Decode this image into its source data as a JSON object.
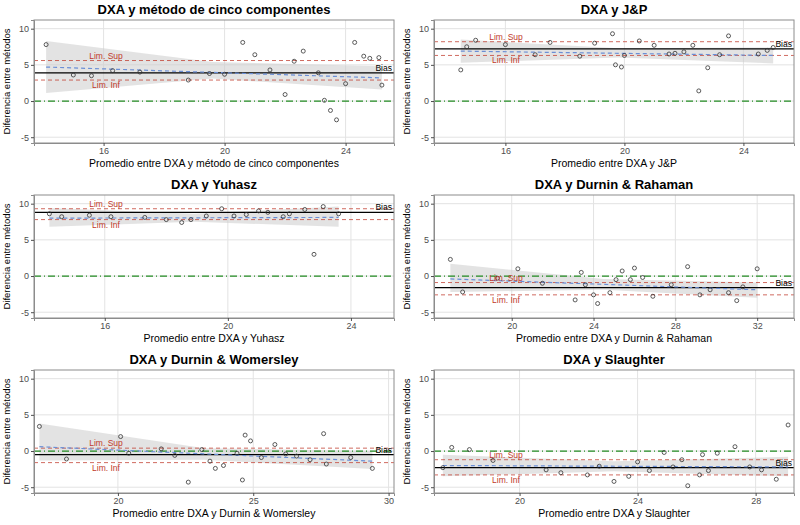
{
  "chart_data": [
    {
      "type": "scatter",
      "title": "DXA y método de cinco componentes",
      "x_label": "Promedio entre DXA y método de cinco componentes",
      "y_label": "Diferencia entre métodos",
      "xlim": [
        13.7,
        25.6
      ],
      "ylim": [
        -5.8,
        11.2
      ],
      "xticks": [
        16,
        20,
        24
      ],
      "yticks": [
        -5,
        0,
        5,
        10
      ],
      "grid": true,
      "marker": "open-circle",
      "color": "#333333",
      "x": [
        14.1,
        15.0,
        15.6,
        16.3,
        17.2,
        18.8,
        19.5,
        20.0,
        20.6,
        21.0,
        21.5,
        22.0,
        22.3,
        22.6,
        23.1,
        23.3,
        23.5,
        23.7,
        24.0,
        24.3,
        24.6,
        24.8,
        25.1,
        25.2
      ],
      "y": [
        7.8,
        3.6,
        3.5,
        4.2,
        4.0,
        2.9,
        3.8,
        3.7,
        8.1,
        6.4,
        4.3,
        0.9,
        5.5,
        6.9,
        3.9,
        0.1,
        -1.3,
        -2.6,
        2.4,
        8.1,
        6.2,
        5.9,
        6.0,
        2.2
      ],
      "reference_lines": [
        {
          "name": "Lim. Sup",
          "value": 5.6,
          "color": "#c0392b",
          "line_style": "dashed"
        },
        {
          "name": "Lim. Inf",
          "value": 2.9,
          "color": "#c0392b",
          "line_style": "dashed"
        },
        {
          "name": "Bias",
          "value": 3.9,
          "color": "#000000",
          "line_style": "solid"
        }
      ],
      "zero_line": {
        "value": 0,
        "color": "#228b22",
        "line_style": "dashdot"
      },
      "trend": {
        "x": [
          14.1,
          25.2
        ],
        "y": [
          4.7,
          3.2
        ],
        "color": "#6b8fd6",
        "line_style": "dashed"
      },
      "band": {
        "x": [
          14.1,
          19.6,
          25.2
        ],
        "lower": [
          1.1,
          3.1,
          1.6
        ],
        "upper": [
          8.3,
          5.4,
          4.8
        ],
        "color": "#cccccc"
      }
    },
    {
      "type": "scatter",
      "title": "DXA y J&P",
      "x_label": "Promedio entre DXA y J&P",
      "y_label": "Diferencia entre métodos",
      "xlim": [
        13.6,
        25.7
      ],
      "ylim": [
        -5.8,
        11.2
      ],
      "xticks": [
        16,
        20,
        24
      ],
      "yticks": [
        -5,
        0,
        5,
        10
      ],
      "grid": true,
      "marker": "open-circle",
      "color": "#333333",
      "x": [
        14.5,
        14.7,
        15.0,
        16.0,
        17.0,
        17.5,
        18.5,
        19.0,
        19.6,
        19.7,
        19.9,
        20.0,
        20.5,
        21.0,
        21.5,
        21.7,
        22.0,
        22.3,
        22.5,
        22.8,
        23.2,
        23.5,
        24.5,
        24.8,
        25.0
      ],
      "y": [
        4.3,
        7.5,
        8.4,
        7.8,
        6.4,
        8.1,
        6.2,
        8.0,
        9.3,
        5.0,
        4.7,
        6.3,
        8.3,
        7.7,
        6.5,
        6.6,
        6.8,
        7.7,
        1.4,
        4.6,
        6.4,
        9.0,
        6.5,
        7.0,
        7.4
      ],
      "reference_lines": [
        {
          "name": "Lim. Sup",
          "value": 8.2,
          "color": "#c0392b",
          "line_style": "dashed"
        },
        {
          "name": "Lim. Inf",
          "value": 6.3,
          "color": "#c0392b",
          "line_style": "dashed"
        },
        {
          "name": "Bias",
          "value": 7.2,
          "color": "#000000",
          "line_style": "solid"
        }
      ],
      "zero_line": {
        "value": 0,
        "color": "#228b22",
        "line_style": "dashdot"
      },
      "trend": {
        "x": [
          14.5,
          25.0
        ],
        "y": [
          6.9,
          6.3
        ],
        "color": "#6b8fd6",
        "line_style": "dashed"
      },
      "band": {
        "x": [
          14.5,
          19.8,
          25.0
        ],
        "lower": [
          5.3,
          6.0,
          5.2
        ],
        "upper": [
          8.5,
          7.3,
          7.4
        ],
        "color": "#cccccc"
      }
    },
    {
      "type": "scatter",
      "title": "DXA y Yuhasz",
      "x_label": "Promedio entre DXA y Yuhasz",
      "y_label": "Diferencia entre métodos",
      "xlim": [
        13.7,
        25.4
      ],
      "ylim": [
        -5.8,
        11.2
      ],
      "xticks": [
        16,
        20,
        24
      ],
      "yticks": [
        -5,
        0,
        5,
        10
      ],
      "grid": true,
      "marker": "open-circle",
      "color": "#333333",
      "x": [
        14.2,
        14.6,
        15.5,
        16.2,
        17.3,
        18.0,
        18.5,
        18.8,
        19.3,
        19.8,
        20.2,
        20.6,
        21.0,
        21.3,
        21.8,
        22.0,
        22.5,
        22.8,
        23.1,
        23.6
      ],
      "y": [
        8.6,
        8.2,
        8.4,
        8.2,
        8.1,
        7.8,
        7.4,
        7.8,
        8.3,
        9.3,
        8.3,
        8.5,
        9.0,
        8.8,
        8.2,
        8.6,
        9.2,
        3.0,
        9.6,
        8.6
      ],
      "reference_lines": [
        {
          "name": "Lim. Sup",
          "value": 9.3,
          "color": "#c0392b",
          "line_style": "dashed"
        },
        {
          "name": "Lim. Inf",
          "value": 7.8,
          "color": "#c0392b",
          "line_style": "dashed"
        },
        {
          "name": "Bias",
          "value": 8.8,
          "color": "#000000",
          "line_style": "solid"
        }
      ],
      "zero_line": {
        "value": 0,
        "color": "#228b22",
        "line_style": "dashdot"
      },
      "trend": {
        "x": [
          14.2,
          23.6
        ],
        "y": [
          8.0,
          8.1
        ],
        "color": "#6b8fd6",
        "line_style": "dashed"
      },
      "band": {
        "x": [
          14.2,
          18.9,
          23.6
        ],
        "lower": [
          6.8,
          7.5,
          6.8
        ],
        "upper": [
          9.4,
          8.6,
          9.6
        ],
        "color": "#cccccc"
      }
    },
    {
      "type": "scatter",
      "title": "DXA y Durnin & Rahaman",
      "x_label": "Promedio entre DXA y Durnin & Rahaman",
      "y_label": "Diferencia entre métodos",
      "xlim": [
        16.2,
        33.8
      ],
      "ylim": [
        -5.8,
        11.2
      ],
      "xticks": [
        20,
        24,
        28,
        32
      ],
      "yticks": [
        -5,
        0,
        5,
        10
      ],
      "grid": true,
      "marker": "open-circle",
      "color": "#333333",
      "x": [
        17.0,
        17.6,
        19.3,
        20.3,
        21.5,
        23.1,
        23.4,
        23.6,
        24.0,
        24.2,
        24.8,
        25.1,
        25.4,
        25.8,
        26.0,
        26.4,
        26.9,
        27.8,
        28.6,
        29.2,
        29.7,
        30.6,
        31.0,
        31.3,
        32.0
      ],
      "y": [
        2.3,
        -2.2,
        -0.3,
        1.0,
        -1.0,
        -3.3,
        0.5,
        -1.2,
        -2.6,
        -3.8,
        -2.3,
        -0.5,
        0.7,
        -0.5,
        1.1,
        -0.2,
        -2.8,
        -1.2,
        1.3,
        -2.6,
        -1.9,
        -2.3,
        -3.4,
        -1.5,
        1.0
      ],
      "reference_lines": [
        {
          "name": "Lim. Sup",
          "value": -0.9,
          "color": "#c0392b",
          "line_style": "dashed"
        },
        {
          "name": "Lim. Inf",
          "value": -2.6,
          "color": "#c0392b",
          "line_style": "dashed"
        },
        {
          "name": "Bias",
          "value": -1.6,
          "color": "#000000",
          "line_style": "solid"
        }
      ],
      "zero_line": {
        "value": 0,
        "color": "#228b22",
        "line_style": "dashdot"
      },
      "trend": {
        "x": [
          17.0,
          32.0
        ],
        "y": [
          -0.4,
          -1.9
        ],
        "color": "#6b8fd6",
        "line_style": "dashed"
      },
      "band": {
        "x": [
          17.0,
          24.5,
          32.0
        ],
        "lower": [
          -2.2,
          -1.9,
          -3.0
        ],
        "upper": [
          1.7,
          -0.4,
          -0.9
        ],
        "color": "#cccccc"
      }
    },
    {
      "type": "scatter",
      "title": "DXA y Durnin & Womersley",
      "x_label": "Promedio entre DXA y Durnin & Womersley",
      "y_label": "Diferencia entre métodos",
      "xlim": [
        16.9,
        30.2
      ],
      "ylim": [
        -5.8,
        11.2
      ],
      "xticks": [
        20,
        25,
        30
      ],
      "yticks": [
        -5,
        0,
        5,
        10
      ],
      "grid": true,
      "marker": "open-circle",
      "color": "#333333",
      "x": [
        17.1,
        18.1,
        20.1,
        20.4,
        21.6,
        22.1,
        22.6,
        23.1,
        23.4,
        23.6,
        23.9,
        24.4,
        24.6,
        24.7,
        24.9,
        25.3,
        25.8,
        26.2,
        26.6,
        27.1,
        27.6,
        27.7,
        28.6,
        29.4
      ],
      "y": [
        3.4,
        -1.1,
        2.0,
        -0.3,
        0.3,
        -0.6,
        -4.3,
        0.2,
        -1.4,
        -2.4,
        -2.0,
        -0.3,
        -4.0,
        2.2,
        1.4,
        -0.9,
        0.9,
        -0.4,
        -0.7,
        -1.2,
        2.4,
        -1.8,
        -0.9,
        -2.4
      ],
      "reference_lines": [
        {
          "name": "Lim. Sup",
          "value": 0.4,
          "color": "#c0392b",
          "line_style": "dashed"
        },
        {
          "name": "Lim. Inf",
          "value": -1.6,
          "color": "#c0392b",
          "line_style": "dashed"
        },
        {
          "name": "Bias",
          "value": -0.5,
          "color": "#000000",
          "line_style": "solid"
        }
      ],
      "zero_line": {
        "value": 0,
        "color": "#228b22",
        "line_style": "dashdot"
      },
      "trend": {
        "x": [
          17.1,
          29.4
        ],
        "y": [
          0.6,
          -1.4
        ],
        "color": "#6b8fd6",
        "line_style": "dashed"
      },
      "band": {
        "x": [
          17.1,
          23.2,
          29.4
        ],
        "lower": [
          -1.3,
          -1.2,
          -2.5
        ],
        "upper": [
          3.8,
          0.4,
          0.0
        ],
        "color": "#cccccc"
      }
    },
    {
      "type": "scatter",
      "title": "DXA y Slaughter",
      "x_label": "Promedio entre DXA y Slaughter",
      "y_label": "Diferencia entre métodos",
      "xlim": [
        17.1,
        29.3
      ],
      "ylim": [
        -5.8,
        11.2
      ],
      "xticks": [
        20,
        24,
        28
      ],
      "yticks": [
        -5,
        0,
        5,
        10
      ],
      "grid": true,
      "marker": "open-circle",
      "color": "#333333",
      "x": [
        17.4,
        17.7,
        18.3,
        19.1,
        20.9,
        21.4,
        22.3,
        22.7,
        23.2,
        23.7,
        24.0,
        24.4,
        24.9,
        25.2,
        25.5,
        25.7,
        26.1,
        26.2,
        26.4,
        26.7,
        27.3,
        27.8,
        28.2,
        28.7,
        29.1
      ],
      "y": [
        -2.3,
        0.5,
        0.2,
        -1.3,
        -2.6,
        -3.0,
        -3.3,
        -2.1,
        -4.2,
        -3.5,
        -1.5,
        -2.7,
        -0.2,
        -2.2,
        -1.2,
        -4.8,
        -3.3,
        -0.5,
        -2.7,
        -0.3,
        0.6,
        -2.2,
        -2.6,
        -3.9,
        3.6
      ],
      "reference_lines": [
        {
          "name": "Lim. Sup",
          "value": -1.2,
          "color": "#c0392b",
          "line_style": "dashed"
        },
        {
          "name": "Lim. Inf",
          "value": -3.3,
          "color": "#c0392b",
          "line_style": "dashed"
        },
        {
          "name": "Bias",
          "value": -2.3,
          "color": "#000000",
          "line_style": "solid"
        }
      ],
      "zero_line": {
        "value": 0,
        "color": "#228b22",
        "line_style": "dashdot"
      },
      "trend": {
        "x": [
          17.4,
          29.1
        ],
        "y": [
          -2.0,
          -2.2
        ],
        "color": "#6b8fd6",
        "line_style": "dashed"
      },
      "band": {
        "x": [
          17.4,
          23.2,
          29.1
        ],
        "lower": [
          -3.5,
          -2.8,
          -3.5
        ],
        "upper": [
          -0.5,
          -1.4,
          -0.8
        ],
        "color": "#cccccc"
      }
    }
  ]
}
